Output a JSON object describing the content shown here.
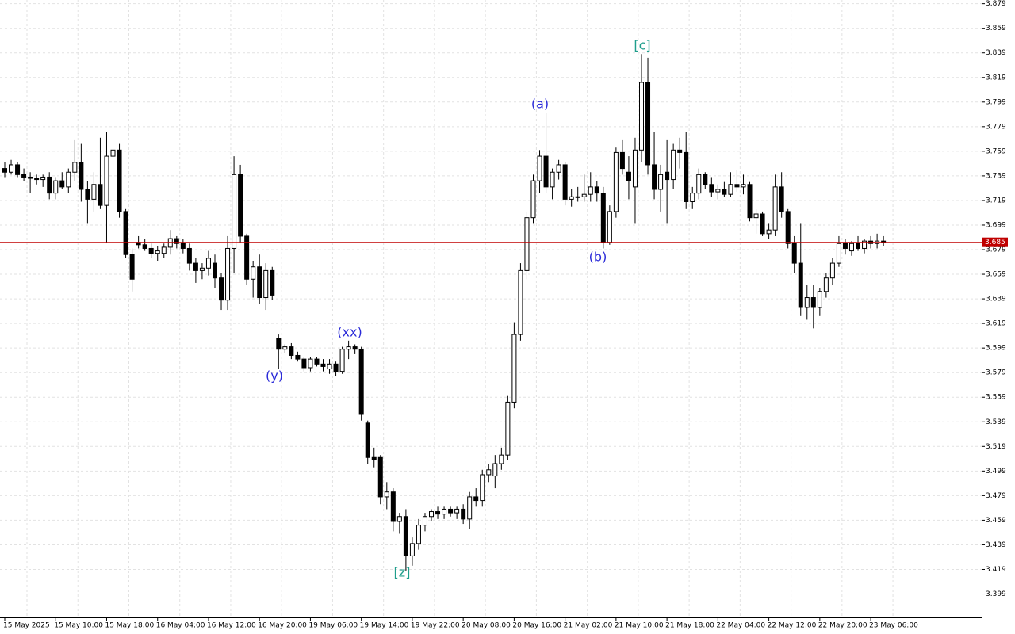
{
  "chart_data": {
    "type": "candlestick",
    "categories": [
      "15 May 2025",
      null,
      null,
      null,
      null,
      null,
      null,
      null,
      "15 May 10:00",
      null,
      null,
      null,
      null,
      null,
      null,
      null,
      "15 May 18:00",
      null,
      null,
      null,
      null,
      null,
      null,
      null,
      "16 May 04:00",
      null,
      null,
      null,
      null,
      null,
      null,
      null,
      "16 May 12:00",
      null,
      null,
      null,
      null,
      null,
      null,
      null,
      "16 May 20:00",
      null,
      null,
      null,
      null,
      null,
      null,
      null,
      "19 May 06:00",
      null,
      null,
      null,
      null,
      null,
      null,
      null,
      "19 May 14:00",
      null,
      null,
      null,
      null,
      null,
      null,
      null,
      "19 May 22:00",
      null,
      null,
      null,
      null,
      null,
      null,
      null,
      "20 May 08:00",
      null,
      null,
      null,
      null,
      null,
      null,
      null,
      "20 May 16:00",
      null,
      null,
      null,
      null,
      null,
      null,
      null,
      "21 May 02:00",
      null,
      null,
      null,
      null,
      null,
      null,
      null,
      "21 May 10:00",
      null,
      null,
      null,
      null,
      null,
      null,
      null,
      "21 May 18:00",
      null,
      null,
      null,
      null,
      null,
      null,
      null,
      "22 May 04:00",
      null,
      null,
      null,
      null,
      null,
      null,
      null,
      "22 May 12:00",
      null,
      null,
      null,
      null,
      null,
      null,
      null,
      "22 May 20:00",
      null,
      null,
      null,
      null,
      null,
      null,
      null,
      "23 May 06:00",
      null,
      null
    ],
    "open": [
      3.745,
      3.742,
      3.748,
      3.74,
      3.738,
      3.737,
      3.736,
      3.738,
      3.725,
      3.735,
      3.73,
      3.742,
      3.75,
      3.728,
      3.72,
      3.732,
      3.715,
      3.755,
      3.76,
      3.71,
      3.675,
      3.685,
      3.683,
      3.68,
      3.676,
      3.676,
      3.681,
      3.688,
      3.684,
      3.68,
      3.668,
      3.662,
      3.664,
      3.668,
      3.656,
      3.638,
      3.68,
      3.74,
      3.69,
      3.655,
      3.665,
      3.64,
      3.662,
      3.607,
      3.598,
      3.6,
      3.593,
      3.59,
      3.583,
      3.59,
      3.586,
      3.582,
      3.586,
      3.58,
      3.598,
      3.6,
      3.598,
      3.538,
      3.51,
      3.51,
      3.478,
      3.482,
      3.458,
      3.462,
      3.43,
      3.44,
      3.455,
      3.462,
      3.466,
      3.464,
      3.468,
      3.465,
      3.468,
      3.46,
      3.478,
      3.475,
      3.496,
      3.495,
      3.505,
      3.512,
      3.555,
      3.61,
      3.662,
      3.705,
      3.735,
      3.755,
      3.73,
      3.742,
      3.748,
      3.72,
      3.722,
      3.722,
      3.724,
      3.73,
      3.725,
      3.685,
      3.71,
      3.758,
      3.742,
      3.73,
      3.76,
      3.815,
      3.748,
      3.728,
      3.742,
      3.736,
      3.76,
      3.758,
      3.718,
      3.725,
      3.74,
      3.732,
      3.726,
      3.728,
      3.724,
      3.732,
      3.73,
      3.732,
      3.705,
      3.708,
      3.692,
      3.695,
      3.73,
      3.71,
      3.684,
      3.668,
      3.632,
      3.64,
      3.632,
      3.645,
      3.656,
      3.668,
      3.684,
      3.678,
      3.684,
      3.68,
      3.686,
      3.684,
      3.686
    ],
    "high": [
      3.75,
      3.752,
      3.75,
      3.745,
      3.742,
      3.74,
      3.74,
      3.742,
      3.738,
      3.742,
      3.745,
      3.768,
      3.765,
      3.735,
      3.742,
      3.77,
      3.775,
      3.778,
      3.765,
      3.712,
      3.68,
      3.69,
      3.688,
      3.684,
      3.682,
      3.684,
      3.695,
      3.69,
      3.688,
      3.684,
      3.672,
      3.668,
      3.678,
      3.675,
      3.66,
      3.69,
      3.755,
      3.748,
      3.692,
      3.67,
      3.675,
      3.668,
      3.665,
      3.61,
      3.602,
      3.603,
      3.596,
      3.592,
      3.592,
      3.592,
      3.59,
      3.59,
      3.588,
      3.6,
      3.605,
      3.602,
      3.6,
      3.54,
      3.518,
      3.512,
      3.49,
      3.485,
      3.465,
      3.468,
      3.445,
      3.46,
      3.465,
      3.468,
      3.47,
      3.47,
      3.47,
      3.47,
      3.472,
      3.482,
      3.485,
      3.5,
      3.505,
      3.512,
      3.518,
      3.56,
      3.62,
      3.668,
      3.71,
      3.74,
      3.76,
      3.79,
      3.745,
      3.752,
      3.75,
      3.728,
      3.73,
      3.74,
      3.742,
      3.735,
      3.73,
      3.715,
      3.762,
      3.768,
      3.755,
      3.77,
      3.838,
      3.835,
      3.775,
      3.748,
      3.768,
      3.765,
      3.77,
      3.775,
      3.73,
      3.745,
      3.742,
      3.738,
      3.732,
      3.734,
      3.742,
      3.744,
      3.74,
      3.734,
      3.712,
      3.71,
      3.7,
      3.74,
      3.742,
      3.712,
      3.69,
      3.7,
      3.65,
      3.65,
      3.648,
      3.66,
      3.672,
      3.69,
      3.688,
      3.686,
      3.69,
      3.688,
      3.69,
      3.692,
      3.69
    ],
    "low": [
      3.738,
      3.74,
      3.738,
      3.735,
      3.725,
      3.732,
      3.73,
      3.72,
      3.72,
      3.728,
      3.725,
      3.735,
      3.718,
      3.7,
      3.71,
      3.712,
      3.685,
      3.74,
      3.705,
      3.672,
      3.645,
      3.68,
      3.678,
      3.672,
      3.67,
      3.672,
      3.675,
      3.68,
      3.676,
      3.662,
      3.652,
      3.655,
      3.658,
      3.648,
      3.63,
      3.63,
      3.66,
      3.685,
      3.65,
      3.64,
      3.635,
      3.63,
      3.638,
      3.582,
      3.595,
      3.59,
      3.588,
      3.58,
      3.58,
      3.584,
      3.58,
      3.578,
      3.576,
      3.578,
      3.59,
      3.594,
      3.54,
      3.505,
      3.502,
      3.472,
      3.468,
      3.45,
      3.448,
      3.418,
      3.422,
      3.435,
      3.45,
      3.458,
      3.46,
      3.46,
      3.462,
      3.46,
      3.456,
      3.452,
      3.47,
      3.47,
      3.49,
      3.485,
      3.5,
      3.508,
      3.55,
      3.605,
      3.655,
      3.7,
      3.725,
      3.725,
      3.72,
      3.736,
      3.715,
      3.714,
      3.718,
      3.718,
      3.718,
      3.718,
      3.68,
      3.683,
      3.705,
      3.74,
      3.72,
      3.7,
      3.75,
      3.74,
      3.72,
      3.71,
      3.7,
      3.728,
      3.745,
      3.712,
      3.712,
      3.72,
      3.728,
      3.722,
      3.72,
      3.722,
      3.722,
      3.726,
      3.724,
      3.702,
      3.692,
      3.69,
      3.688,
      3.69,
      3.705,
      3.68,
      3.66,
      3.625,
      3.622,
      3.615,
      3.625,
      3.64,
      3.65,
      3.665,
      3.675,
      3.674,
      3.678,
      3.676,
      3.68,
      3.68,
      3.682
    ],
    "close": [
      3.742,
      3.748,
      3.74,
      3.738,
      3.737,
      3.736,
      3.738,
      3.725,
      3.735,
      3.73,
      3.742,
      3.75,
      3.728,
      3.72,
      3.732,
      3.715,
      3.755,
      3.76,
      3.71,
      3.675,
      3.655,
      3.683,
      3.68,
      3.676,
      3.678,
      3.681,
      3.688,
      3.684,
      3.68,
      3.668,
      3.662,
      3.664,
      3.672,
      3.656,
      3.638,
      3.68,
      3.74,
      3.69,
      3.655,
      3.665,
      3.64,
      3.662,
      3.642,
      3.598,
      3.6,
      3.593,
      3.59,
      3.583,
      3.59,
      3.586,
      3.584,
      3.586,
      3.58,
      3.598,
      3.6,
      3.598,
      3.545,
      3.51,
      3.508,
      3.478,
      3.482,
      3.458,
      3.462,
      3.43,
      3.44,
      3.455,
      3.462,
      3.466,
      3.464,
      3.468,
      3.465,
      3.468,
      3.46,
      3.478,
      3.475,
      3.496,
      3.5,
      3.505,
      3.512,
      3.555,
      3.61,
      3.662,
      3.705,
      3.735,
      3.755,
      3.73,
      3.742,
      3.748,
      3.72,
      3.722,
      3.722,
      3.724,
      3.73,
      3.725,
      3.685,
      3.71,
      3.758,
      3.745,
      3.735,
      3.76,
      3.815,
      3.748,
      3.728,
      3.74,
      3.736,
      3.76,
      3.758,
      3.718,
      3.725,
      3.74,
      3.732,
      3.726,
      3.728,
      3.724,
      3.732,
      3.73,
      3.732,
      3.705,
      3.708,
      3.692,
      3.695,
      3.73,
      3.71,
      3.684,
      3.668,
      3.632,
      3.64,
      3.632,
      3.645,
      3.656,
      3.668,
      3.684,
      3.68,
      3.684,
      3.68,
      3.686,
      3.684,
      3.686,
      3.685
    ],
    "ylim": [
      3.38,
      3.882
    ],
    "yticks": [
      3.399,
      3.419,
      3.439,
      3.459,
      3.479,
      3.499,
      3.519,
      3.539,
      3.559,
      3.579,
      3.599,
      3.619,
      3.639,
      3.659,
      3.679,
      3.699,
      3.719,
      3.739,
      3.759,
      3.779,
      3.799,
      3.819,
      3.839,
      3.859,
      3.879
    ],
    "grid": true,
    "current_price": 3.685,
    "current_price_color": "#c00000",
    "annotations": [
      {
        "text": "(a)",
        "color": "#2a2ad8"
      },
      {
        "text": "(b)",
        "color": "#2a2ad8"
      },
      {
        "text": "[c]",
        "color": "#1f9e8c"
      },
      {
        "text": "(xx)",
        "color": "#2a2ad8"
      },
      {
        "text": "(y)",
        "color": "#2a2ad8"
      },
      {
        "text": "[z]",
        "color": "#1f9e8c"
      }
    ]
  }
}
